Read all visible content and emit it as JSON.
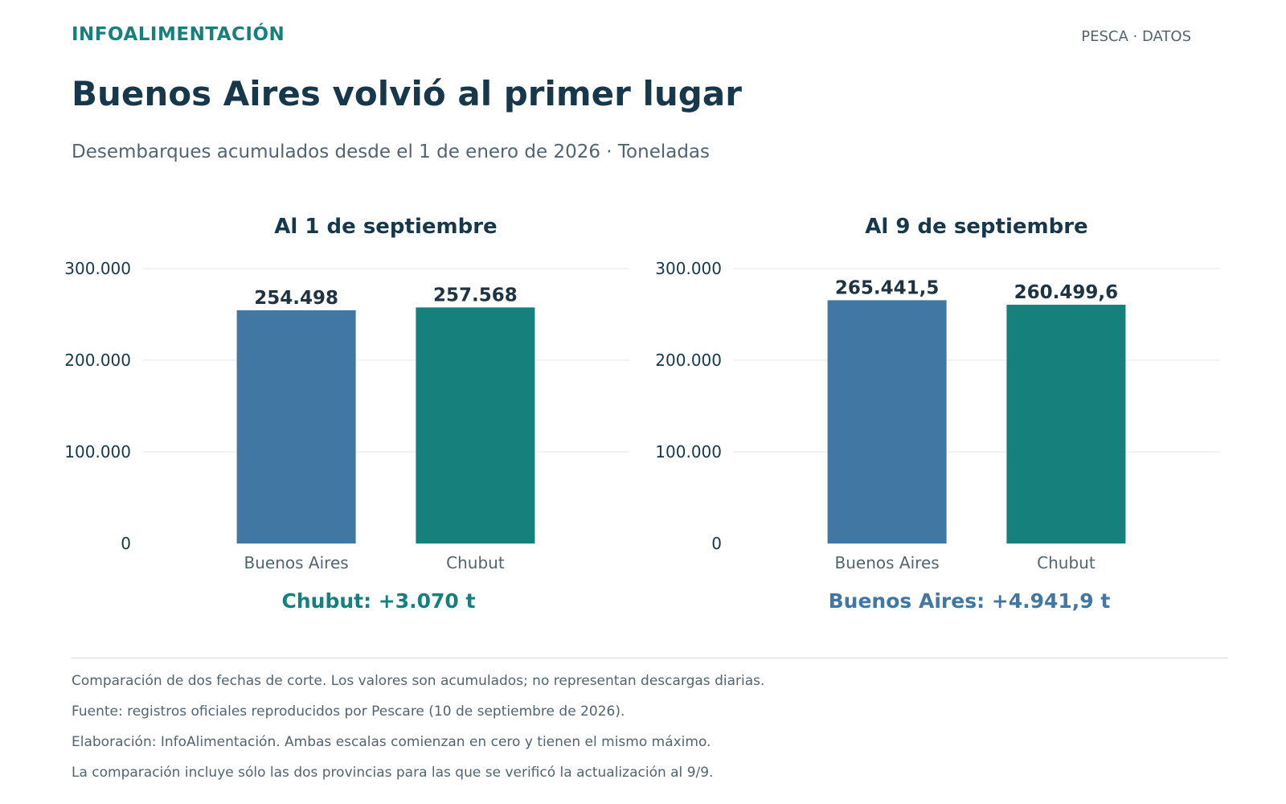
{
  "header": {
    "brand": "INFOALIMENTACIÓN",
    "section": "PESCA · DATOS",
    "title": "Buenos Aires volvió al primer lugar",
    "subtitle": "Desembarques acumulados desde el 1 de enero de 2026 · Toneladas"
  },
  "colors": {
    "buenos_aires": "#4177a3",
    "chubut": "#16807d",
    "text": "#17384a",
    "muted": "#526470"
  },
  "chart_data": [
    {
      "type": "bar",
      "title": "Al 1 de septiembre",
      "categories": [
        "Buenos Aires",
        "Chubut"
      ],
      "values": [
        254498,
        257568
      ],
      "value_labels": [
        "254.498",
        "257.568"
      ],
      "bar_colors": [
        "#4177a3",
        "#16807d"
      ],
      "ylim": [
        0,
        300000
      ],
      "yticks": [
        0,
        100000,
        200000,
        300000
      ],
      "ytick_labels": [
        "0",
        "100.000",
        "200.000",
        "300.000"
      ],
      "grid": true,
      "annotation": "Chubut: +3.070 t",
      "annotation_color": "#16807d"
    },
    {
      "type": "bar",
      "title": "Al 9 de septiembre",
      "categories": [
        "Buenos Aires",
        "Chubut"
      ],
      "values": [
        265441.5,
        260499.6
      ],
      "value_labels": [
        "265.441,5",
        "260.499,6"
      ],
      "bar_colors": [
        "#4177a3",
        "#16807d"
      ],
      "ylim": [
        0,
        300000
      ],
      "yticks": [
        0,
        100000,
        200000,
        300000
      ],
      "ytick_labels": [
        "0",
        "100.000",
        "200.000",
        "300.000"
      ],
      "grid": true,
      "annotation": "Buenos Aires: +4.941,9 t",
      "annotation_color": "#4177a3"
    }
  ],
  "footer": {
    "notes": [
      "Comparación de dos fechas de corte. Los valores son acumulados; no representan descargas diarias.",
      "Fuente: registros oficiales reproducidos por Pescare (10 de septiembre de 2026).",
      "Elaboración: InfoAlimentación. Ambas escalas comienzan en cero y tienen el mismo máximo.",
      "La comparación incluye sólo las dos provincias para las que se verificó la actualización al 9/9."
    ]
  }
}
